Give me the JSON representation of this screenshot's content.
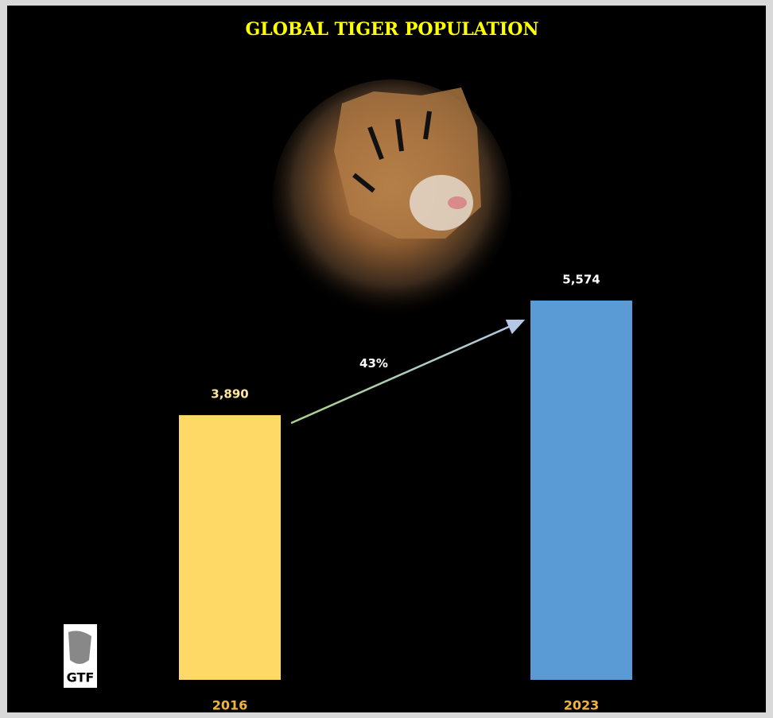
{
  "chart_data": {
    "type": "bar",
    "title": "GLOBAL TIGER POPULATION",
    "categories": [
      "2016",
      "2023"
    ],
    "values": [
      3890,
      5574
    ],
    "value_labels": [
      "3,890",
      "5,574"
    ],
    "colors": [
      "#ffd966",
      "#5b9bd5"
    ],
    "annotation": "43%",
    "logo": "GTF"
  }
}
